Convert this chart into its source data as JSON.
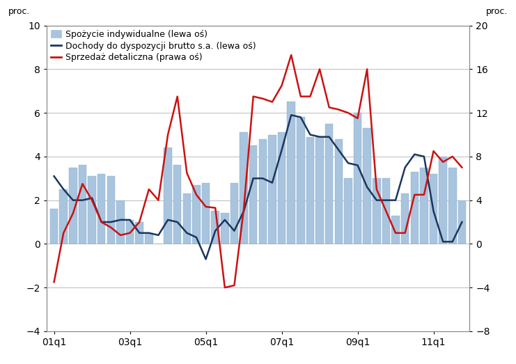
{
  "ylabel_left": "proc.",
  "ylabel_right": "proc.",
  "ylim_left": [
    -4,
    10
  ],
  "ylim_right": [
    -8,
    20
  ],
  "yticks_left": [
    -4,
    -2,
    0,
    2,
    4,
    6,
    8,
    10
  ],
  "yticks_right": [
    -8,
    -4,
    0,
    4,
    8,
    12,
    16,
    20
  ],
  "bar_color": "#a8c4de",
  "bar_edge_color": "#8aafc8",
  "line1_color": "#1a3660",
  "line2_color": "#cc1111",
  "legend_labels": [
    "Spożycie indywidualne (lewa oś)",
    "Dochody do dyspozycji brutto s.a. (lewa oś)",
    "Sprzedaż detaliczna (prawa oś)"
  ],
  "xtick_labels": [
    "01q1",
    "03q1",
    "05q1",
    "07q1",
    "09q1",
    "11q1"
  ],
  "xtick_positions": [
    0,
    8,
    16,
    24,
    32,
    40
  ],
  "bar_values": [
    1.6,
    2.5,
    3.5,
    3.6,
    3.1,
    3.2,
    3.1,
    2.0,
    1.1,
    1.0,
    0.5,
    0.0,
    4.4,
    3.6,
    2.3,
    2.7,
    2.8,
    1.5,
    1.4,
    2.8,
    5.1,
    4.5,
    4.8,
    5.0,
    5.1,
    6.5,
    5.8,
    4.9,
    4.9,
    5.5,
    4.8,
    3.0,
    6.0,
    5.3,
    3.0,
    3.0,
    1.3,
    2.3,
    3.3,
    3.5,
    3.2,
    4.0,
    3.5,
    2.0
  ],
  "line1_values": [
    3.1,
    2.5,
    2.0,
    2.0,
    2.1,
    1.0,
    1.0,
    1.1,
    1.1,
    0.5,
    0.5,
    0.4,
    1.1,
    1.0,
    0.5,
    0.3,
    -0.7,
    0.6,
    1.1,
    0.6,
    1.5,
    3.0,
    3.0,
    2.8,
    4.3,
    5.9,
    5.8,
    5.0,
    4.9,
    4.9,
    4.3,
    3.7,
    3.6,
    2.6,
    2.0,
    2.0,
    2.0,
    3.5,
    4.1,
    4.0,
    1.5,
    0.1,
    0.1,
    1.0
  ],
  "line2_values_right": [
    -3.5,
    1.0,
    2.8,
    5.5,
    4.0,
    2.0,
    1.5,
    0.8,
    1.0,
    2.0,
    5.0,
    4.0,
    10.0,
    13.5,
    6.5,
    4.5,
    3.4,
    3.3,
    -4.0,
    -3.8,
    3.2,
    13.5,
    13.3,
    13.0,
    14.5,
    17.3,
    13.5,
    13.5,
    16.0,
    12.5,
    12.3,
    12.0,
    11.5,
    16.0,
    5.0,
    3.0,
    1.0,
    1.0,
    4.5,
    4.5,
    8.5,
    7.5,
    8.0,
    7.0
  ]
}
